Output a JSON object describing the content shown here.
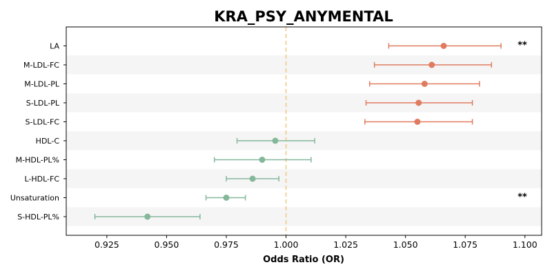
{
  "chart_data": {
    "type": "forest",
    "title": "KRA_PSY_ANYMENTAL",
    "xlabel": "Odds Ratio (OR)",
    "ylabel": "",
    "xlim": [
      0.908,
      1.107
    ],
    "xticks": [
      0.925,
      0.95,
      0.975,
      1.0,
      1.025,
      1.05,
      1.075,
      1.1
    ],
    "xtick_labels": [
      "0.925",
      "0.950",
      "0.975",
      "1.000",
      "1.025",
      "1.050",
      "1.075",
      "1.100"
    ],
    "reference_line": 1.0,
    "rows": [
      {
        "label": "LA",
        "or": 1.066,
        "ci_low": 1.043,
        "ci_high": 1.09,
        "group": "risk",
        "sig": "**"
      },
      {
        "label": "M-LDL-FC",
        "or": 1.061,
        "ci_low": 1.037,
        "ci_high": 1.086,
        "group": "risk",
        "sig": ""
      },
      {
        "label": "M-LDL-PL",
        "or": 1.058,
        "ci_low": 1.035,
        "ci_high": 1.081,
        "group": "risk",
        "sig": ""
      },
      {
        "label": "S-LDL-PL",
        "or": 1.0555,
        "ci_low": 1.0335,
        "ci_high": 1.078,
        "group": "risk",
        "sig": ""
      },
      {
        "label": "S-LDL-FC",
        "or": 1.055,
        "ci_low": 1.033,
        "ci_high": 1.078,
        "group": "risk",
        "sig": ""
      },
      {
        "label": "HDL-C",
        "or": 0.9955,
        "ci_low": 0.9795,
        "ci_high": 1.012,
        "group": "protective",
        "sig": ""
      },
      {
        "label": "M-HDL-PL%",
        "or": 0.99,
        "ci_low": 0.97,
        "ci_high": 1.0105,
        "group": "protective",
        "sig": ""
      },
      {
        "label": "L-HDL-FC",
        "or": 0.986,
        "ci_low": 0.975,
        "ci_high": 0.997,
        "group": "protective",
        "sig": ""
      },
      {
        "label": "Unsaturation",
        "or": 0.975,
        "ci_low": 0.9665,
        "ci_high": 0.983,
        "group": "protective",
        "sig": "**"
      },
      {
        "label": "S-HDL-PL%",
        "or": 0.942,
        "ci_low": 0.92,
        "ci_high": 0.964,
        "group": "protective",
        "sig": ""
      }
    ],
    "colors": {
      "risk": "#e07b5f",
      "protective": "#85b79b",
      "reference_line": "#f0c987",
      "band": "#f5f5f5"
    },
    "grid": false,
    "legend": "none"
  }
}
